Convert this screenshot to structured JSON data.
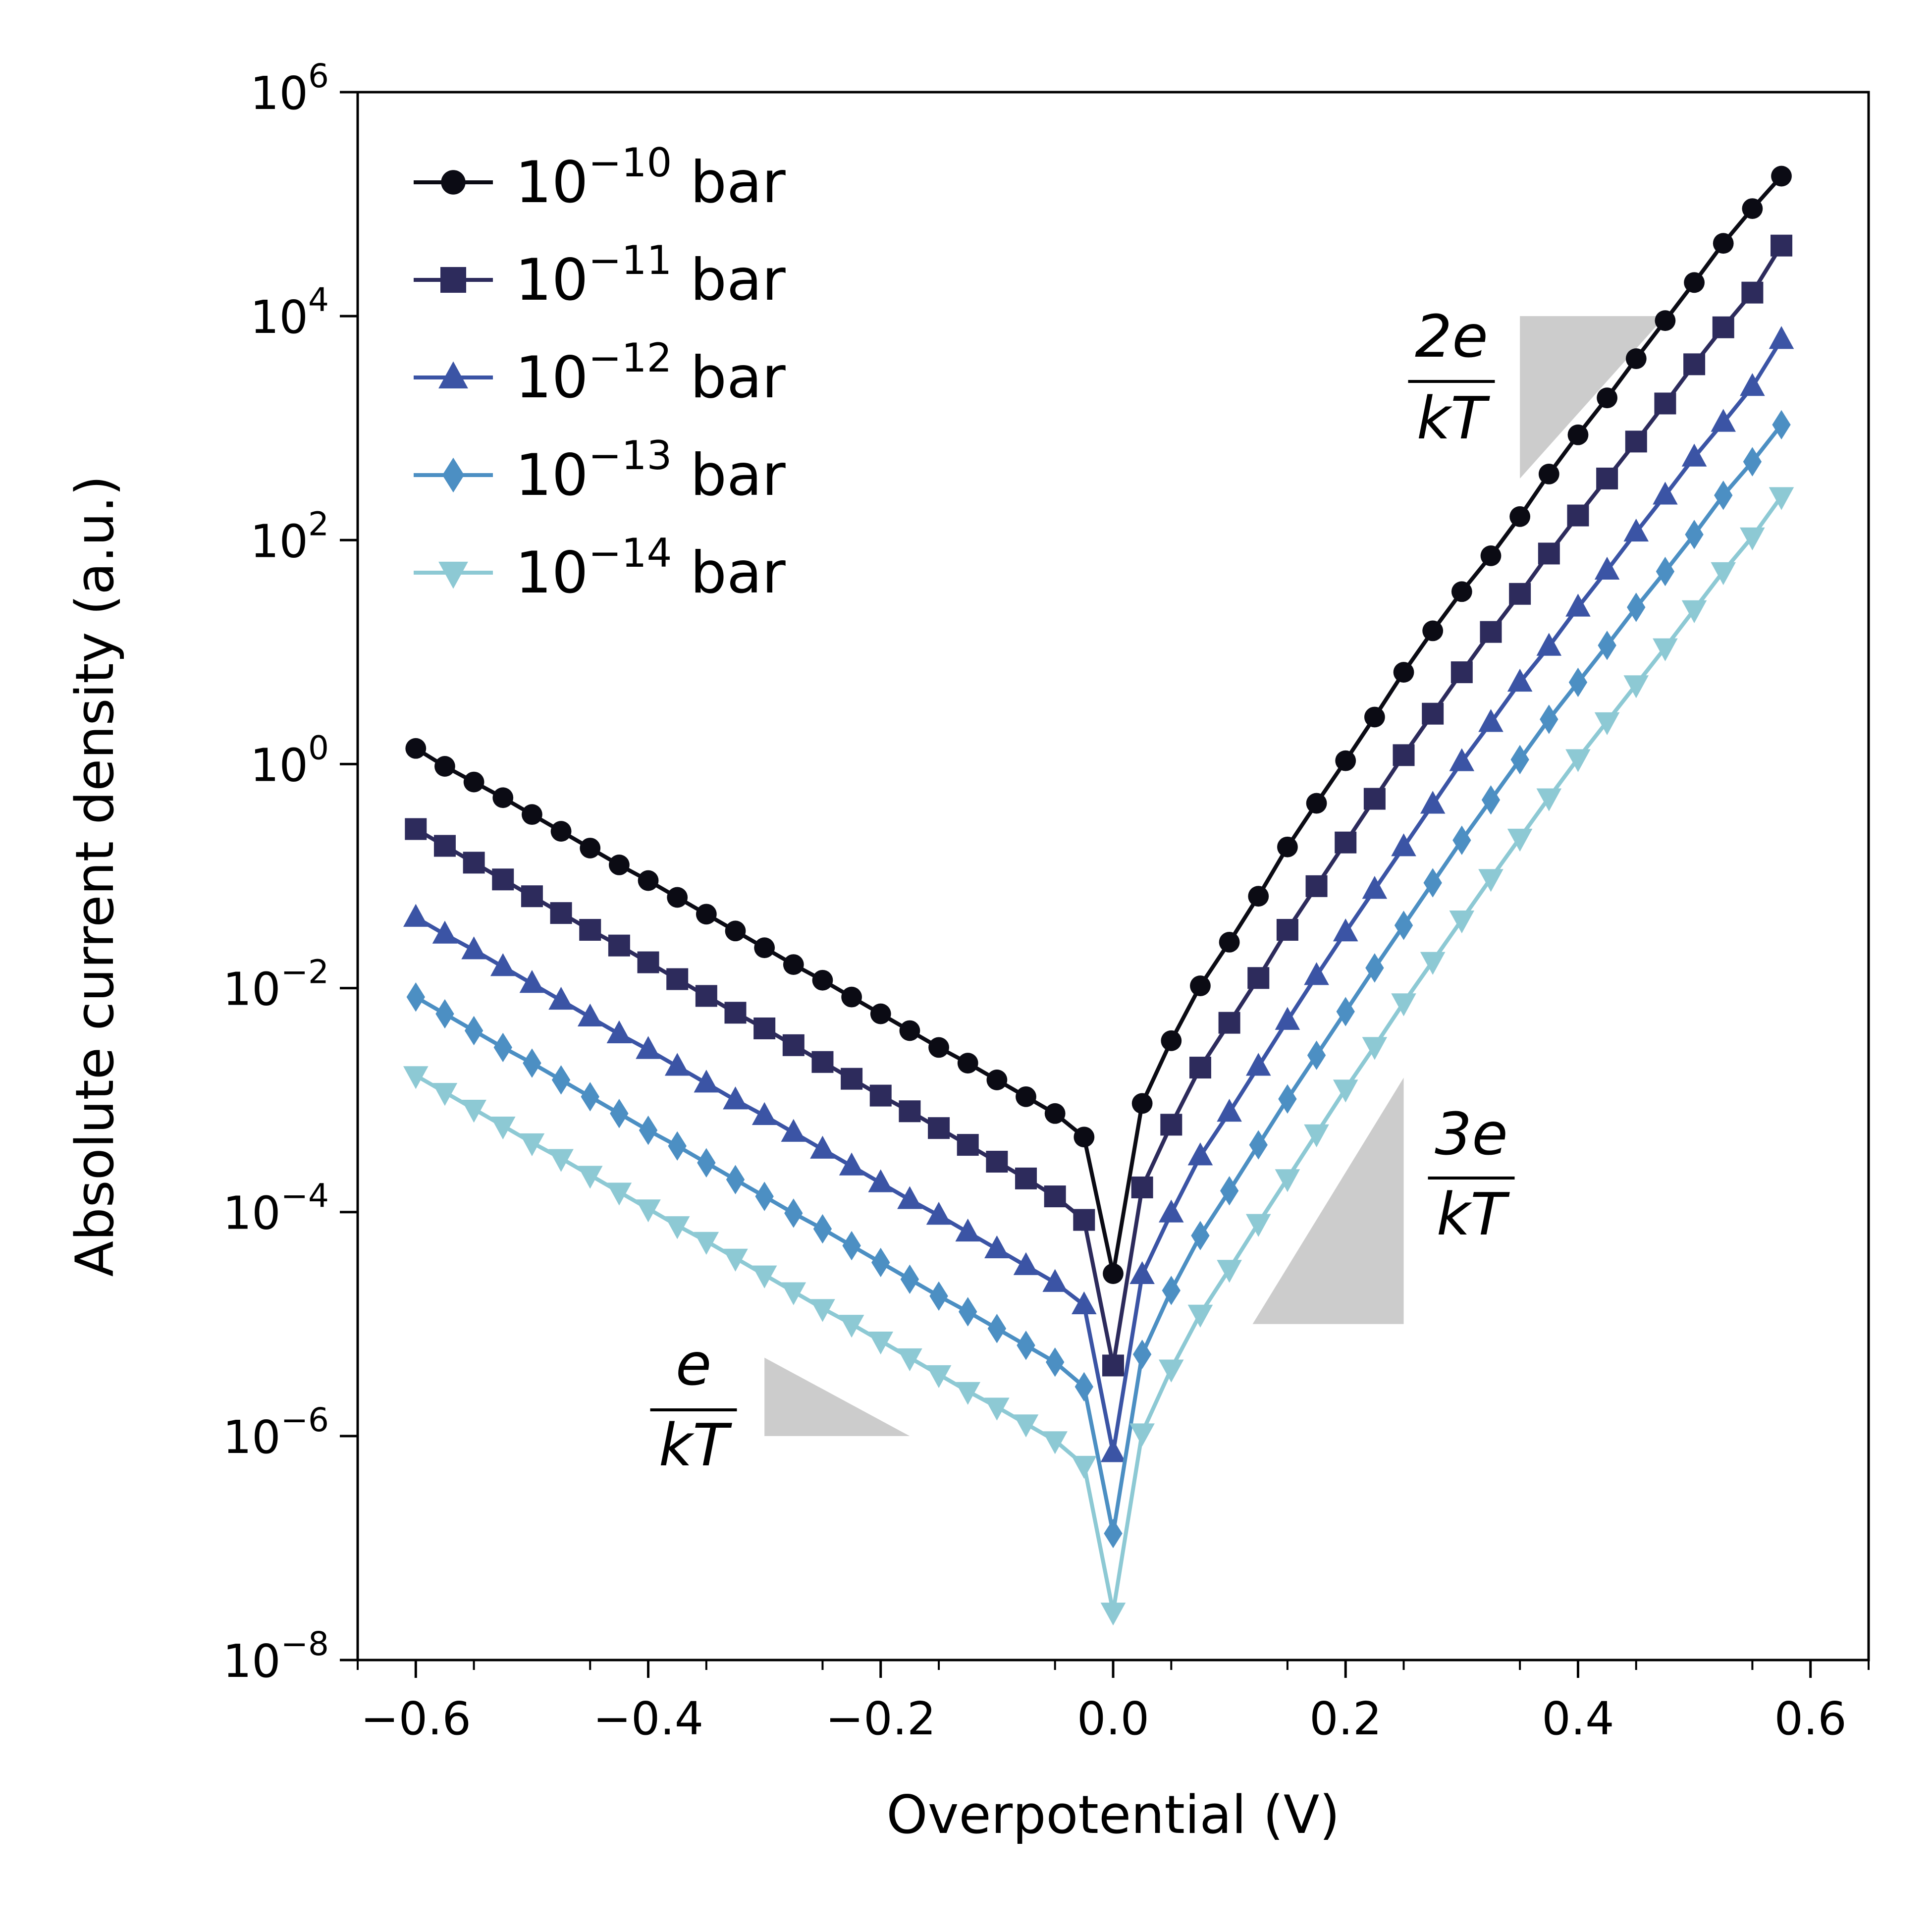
{
  "chart_data": {
    "type": "line",
    "xlabel": "Overpotential (V)",
    "ylabel": "Absolute current density (a.u.)",
    "xlim": [
      -0.65,
      0.65
    ],
    "ylim": [
      1e-08,
      1000000.0
    ],
    "yscale": "log",
    "grid": false,
    "legend_position": "top-left",
    "x_ticks": [
      "−0.6",
      "−0.4",
      "−0.2",
      "0.0",
      "0.2",
      "0.4",
      "0.6"
    ],
    "x_tick_values": [
      -0.6,
      -0.4,
      -0.2,
      0.0,
      0.2,
      0.4,
      0.6
    ],
    "y_tick_exponents": [
      "−8",
      "−6",
      "−4",
      "−2",
      "0",
      "2",
      "4",
      "6"
    ],
    "y_tick_values": [
      1e-08,
      1e-06,
      0.0001,
      0.01,
      1,
      100.0,
      10000.0,
      1000000.0
    ],
    "y_tick_base": "10",
    "x": [
      -0.6,
      -0.575,
      -0.55,
      -0.525,
      -0.5,
      -0.475,
      -0.45,
      -0.425,
      -0.4,
      -0.375,
      -0.35,
      -0.325,
      -0.3,
      -0.275,
      -0.25,
      -0.225,
      -0.2,
      -0.175,
      -0.15,
      -0.125,
      -0.1,
      -0.075,
      -0.05,
      -0.025,
      0.0,
      0.025,
      0.05,
      0.075,
      0.1,
      0.125,
      0.15,
      0.175,
      0.2,
      0.225,
      0.25,
      0.275,
      0.3,
      0.325,
      0.35,
      0.375,
      0.4,
      0.425,
      0.45,
      0.475,
      0.5,
      0.525,
      0.55,
      0.575
    ],
    "series": [
      {
        "name_base": "10",
        "name_exponent": "−10",
        "name_unit": "bar",
        "color": "#0b0b14",
        "marker": "circle",
        "log10_values": [
          0.14,
          -0.02,
          -0.16,
          -0.3,
          -0.45,
          -0.6,
          -0.75,
          -0.9,
          -1.04,
          -1.19,
          -1.34,
          -1.49,
          -1.64,
          -1.79,
          -1.93,
          -2.08,
          -2.23,
          -2.38,
          -2.53,
          -2.67,
          -2.82,
          -2.97,
          -3.12,
          -3.33,
          -4.55,
          -3.03,
          -2.47,
          -1.98,
          -1.59,
          -1.18,
          -0.74,
          -0.35,
          0.03,
          0.42,
          0.82,
          1.19,
          1.54,
          1.86,
          2.21,
          2.59,
          2.94,
          3.27,
          3.62,
          3.96,
          4.3,
          4.65,
          4.96,
          5.25
        ]
      },
      {
        "name_base": "10",
        "name_exponent": "−11",
        "name_unit": "bar",
        "color": "#2d2b5c",
        "marker": "square",
        "log10_values": [
          -0.58,
          -0.73,
          -0.88,
          -1.03,
          -1.18,
          -1.33,
          -1.48,
          -1.62,
          -1.77,
          -1.92,
          -2.07,
          -2.22,
          -2.36,
          -2.51,
          -2.66,
          -2.81,
          -2.96,
          -3.1,
          -3.25,
          -3.4,
          -3.55,
          -3.7,
          -3.86,
          -4.07,
          -5.37,
          -3.78,
          -3.22,
          -2.71,
          -2.31,
          -1.91,
          -1.48,
          -1.09,
          -0.7,
          -0.31,
          0.08,
          0.45,
          0.82,
          1.18,
          1.52,
          1.88,
          2.22,
          2.55,
          2.88,
          3.22,
          3.57,
          3.9,
          4.21,
          4.63
        ]
      },
      {
        "name_base": "10",
        "name_exponent": "−12",
        "name_unit": "bar",
        "color": "#3b54a5",
        "marker": "triangle-up",
        "log10_values": [
          -1.37,
          -1.52,
          -1.66,
          -1.81,
          -1.96,
          -2.11,
          -2.26,
          -2.41,
          -2.55,
          -2.7,
          -2.85,
          -3.0,
          -3.14,
          -3.29,
          -3.44,
          -3.59,
          -3.74,
          -3.89,
          -4.03,
          -4.18,
          -4.33,
          -4.48,
          -4.63,
          -4.83,
          -6.15,
          -4.56,
          -4.01,
          -3.5,
          -3.11,
          -2.7,
          -2.29,
          -1.89,
          -1.5,
          -1.12,
          -0.74,
          -0.36,
          0.02,
          0.37,
          0.73,
          1.05,
          1.4,
          1.73,
          2.07,
          2.4,
          2.74,
          3.05,
          3.37,
          3.79
        ]
      },
      {
        "name_base": "10",
        "name_exponent": "−13",
        "name_unit": "bar",
        "color": "#4c8fc3",
        "marker": "diamond",
        "log10_values": [
          -2.08,
          -2.23,
          -2.38,
          -2.53,
          -2.67,
          -2.82,
          -2.97,
          -3.12,
          -3.27,
          -3.41,
          -3.56,
          -3.71,
          -3.86,
          -4.01,
          -4.15,
          -4.3,
          -4.45,
          -4.6,
          -4.75,
          -4.89,
          -5.04,
          -5.19,
          -5.34,
          -5.56,
          -6.87,
          -5.27,
          -4.7,
          -4.21,
          -3.81,
          -3.4,
          -2.99,
          -2.6,
          -2.21,
          -1.82,
          -1.44,
          -1.06,
          -0.68,
          -0.32,
          0.04,
          0.4,
          0.73,
          1.06,
          1.4,
          1.72,
          2.05,
          2.4,
          2.7,
          3.03
        ]
      },
      {
        "name_base": "10",
        "name_exponent": "−14",
        "name_unit": "bar",
        "color": "#8dc9d4",
        "marker": "triangle-down",
        "log10_values": [
          -2.78,
          -2.93,
          -3.08,
          -3.23,
          -3.38,
          -3.52,
          -3.67,
          -3.82,
          -3.97,
          -4.12,
          -4.26,
          -4.41,
          -4.56,
          -4.71,
          -4.86,
          -5.0,
          -5.15,
          -5.3,
          -5.45,
          -5.6,
          -5.74,
          -5.89,
          -6.04,
          -6.26,
          -7.57,
          -5.97,
          -5.4,
          -4.91,
          -4.51,
          -4.1,
          -3.7,
          -3.3,
          -2.9,
          -2.52,
          -2.13,
          -1.76,
          -1.39,
          -1.02,
          -0.66,
          -0.3,
          0.05,
          0.38,
          0.71,
          1.04,
          1.38,
          1.72,
          2.03,
          2.39
        ]
      }
    ],
    "annotations": [
      {
        "numerator": "2e",
        "denominator": "kT",
        "triangle": {
          "x": [
            0.35,
            0.35,
            0.475
          ],
          "log10_y": [
            2.55,
            4.0,
            4.0
          ]
        }
      },
      {
        "numerator": "3e",
        "denominator": "kT",
        "triangle": {
          "x": [
            0.12,
            0.25,
            0.25
          ],
          "log10_y": [
            -5.0,
            -2.8,
            -5.0
          ]
        }
      },
      {
        "numerator": "e",
        "denominator": "kT",
        "triangle": {
          "x": [
            -0.3,
            -0.3,
            -0.175
          ],
          "log10_y": [
            -6.0,
            -5.3,
            -6.0
          ]
        }
      }
    ],
    "shade_color": "#cccccc"
  }
}
